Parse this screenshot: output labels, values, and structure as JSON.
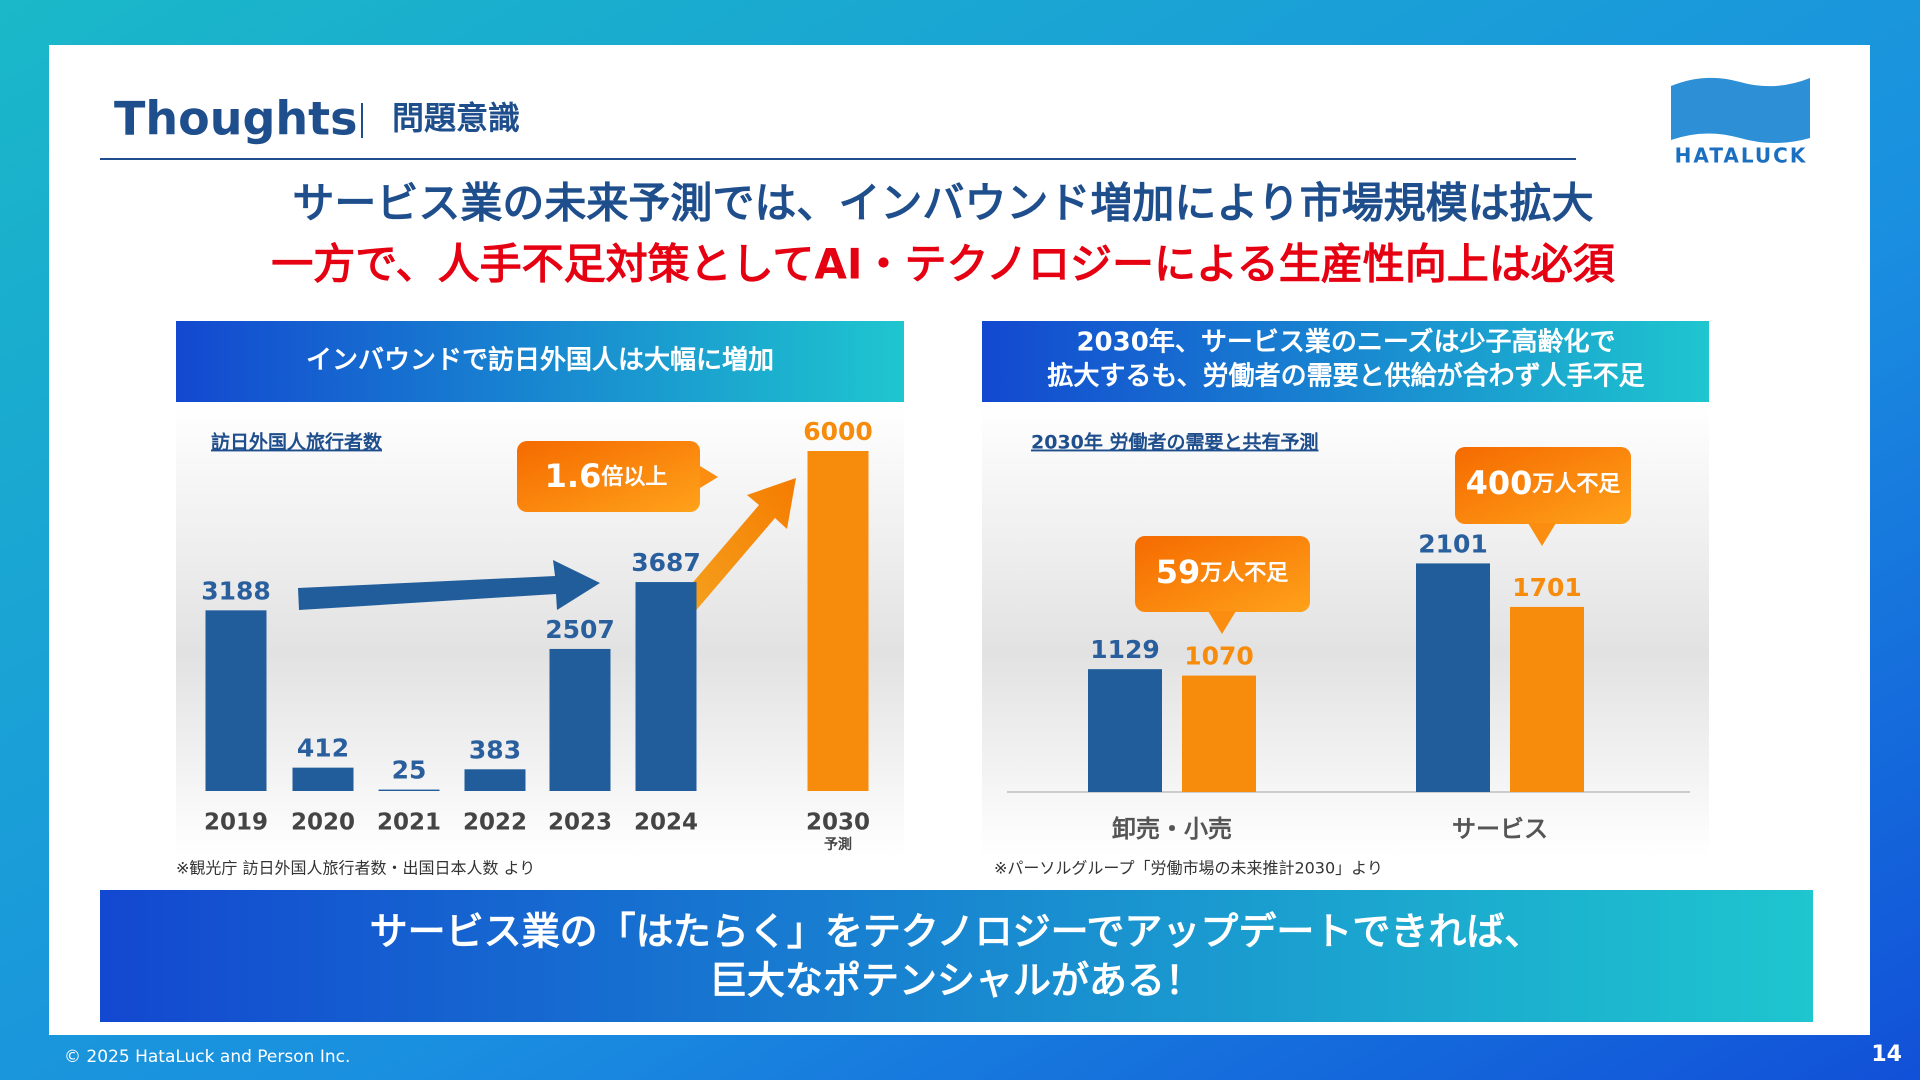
{
  "header": {
    "title": "Thoughts",
    "subtitle": "問題意識"
  },
  "logo": "HATALUCK",
  "headline": [
    "サービス業の未来予測では、インバウンド増加により市場規模は拡大",
    "一方で、人手不足対策としてAI・テクノロジーによる生産性向上は必須"
  ],
  "chart_data": [
    {
      "type": "bar",
      "panel_title": [
        "インバウンドで訪日外国人は大幅に増加"
      ],
      "title": "訪日外国人旅行者数",
      "categories": [
        "2019",
        "2020",
        "2021",
        "2022",
        "2023",
        "2024",
        "2030"
      ],
      "category_note": "予測",
      "values": [
        3188,
        412,
        25,
        383,
        2507,
        3687,
        6000
      ],
      "colors": [
        "#215d9b",
        "#215d9b",
        "#215d9b",
        "#215d9b",
        "#215d9b",
        "#215d9b",
        "#f78c0c"
      ],
      "ylim": [
        0,
        6000
      ],
      "callouts": [
        {
          "number": "1.6",
          "text": "倍以上"
        }
      ],
      "source": "※観光庁 訪日外国人旅行者数・出国日本人数 より"
    },
    {
      "type": "bar",
      "panel_title": [
        "2030年、サービス業のニーズは少子高齢化で",
        "拡大するも、労働者の需要と供給が合わず人手不足"
      ],
      "title": "2030年 労働者の需要と共有予測",
      "categories": [
        "卸売・小売",
        "サービス"
      ],
      "series": [
        {
          "color": "#215d9b",
          "values": [
            1129,
            2101
          ]
        },
        {
          "color": "#f78c0c",
          "values": [
            1070,
            1701
          ]
        }
      ],
      "ylim": [
        0,
        2500
      ],
      "callouts": [
        {
          "number": "59",
          "text": "万人不足"
        },
        {
          "number": "400",
          "text": "万人不足"
        }
      ],
      "source": "※パーソルグループ「労働市場の未来推計2030」より"
    }
  ],
  "banner": [
    "サービス業の「はたらく」をテクノロジーでアップデートできれば、",
    "巨大なポテンシャルがある！"
  ],
  "footer": {
    "copyright": "© 2025 HataLuck and Person Inc.",
    "page": 14
  }
}
